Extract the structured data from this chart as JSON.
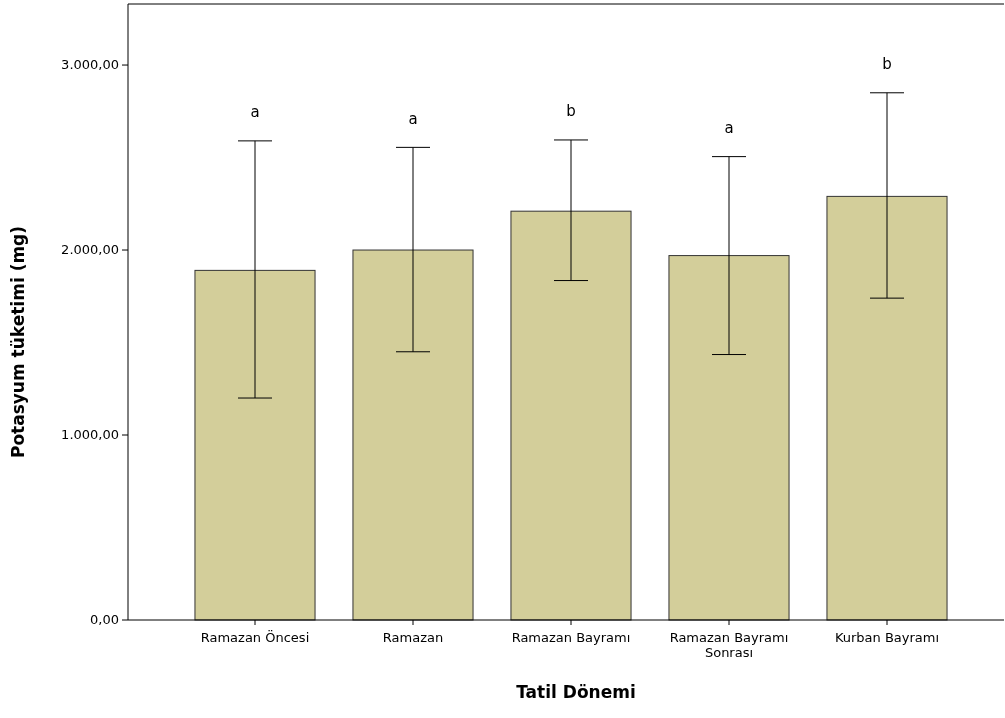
{
  "chart_data": {
    "type": "bar",
    "xlabel": "Tatil Dönemi",
    "ylabel": "Potasyum tüketimi (mg)",
    "categories": [
      "Ramazan Öncesi",
      "Ramazan",
      "Ramazan Bayramı",
      "Ramazan Bayramı Sonrası",
      "Kurban Bayramı"
    ],
    "values": [
      1890,
      2000,
      2210,
      1970,
      2290
    ],
    "color": "#d3ce9a",
    "errors": [
      [
        1200,
        2590
      ],
      [
        1450,
        2555
      ],
      [
        1835,
        2595
      ],
      [
        1435,
        2505
      ],
      [
        1740,
        2850
      ]
    ],
    "ylim": [
      0,
      3330
    ],
    "yticks": [
      {
        "value": 0,
        "label": "0,00"
      },
      {
        "value": 1000,
        "label": "1.000,00"
      },
      {
        "value": 2000,
        "label": "2.000,00"
      },
      {
        "value": 3000,
        "label": "3.000,00"
      }
    ],
    "annotations": [
      "a",
      "a",
      "b",
      "a",
      "b"
    ],
    "grid": false
  }
}
